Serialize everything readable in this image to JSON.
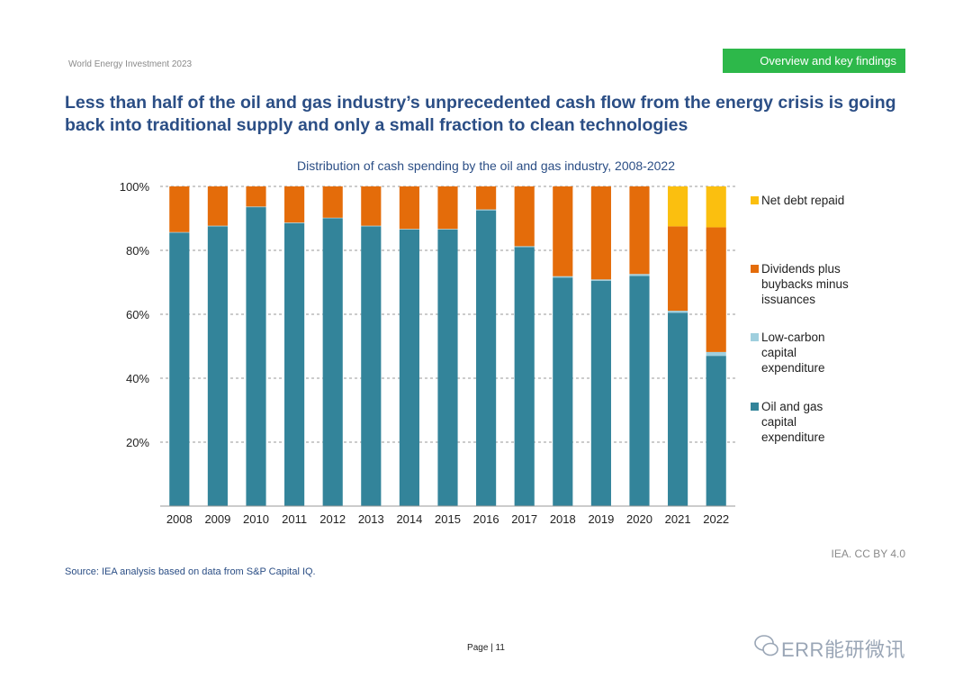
{
  "header": {
    "report_name": "World Energy Investment 2023",
    "section_badge": "Overview and key findings"
  },
  "title": "Less than half of the oil and gas industry’s unprecedented cash flow from the energy crisis is going back into traditional supply and only a small fraction to clean technologies",
  "chart_data": {
    "type": "bar",
    "stacked": true,
    "title": "Distribution of cash spending by the oil and gas industry, 2008-2022",
    "xlabel": "",
    "ylabel": "",
    "ylim": [
      0,
      100
    ],
    "yticks": [
      20,
      40,
      60,
      80,
      100
    ],
    "ytick_labels": [
      "20%",
      "40%",
      "60%",
      "80%",
      "100%"
    ],
    "grid": "horizontal-dashed",
    "legend_position": "right",
    "categories": [
      "2008",
      "2009",
      "2010",
      "2011",
      "2012",
      "2013",
      "2014",
      "2015",
      "2016",
      "2017",
      "2018",
      "2019",
      "2020",
      "2021",
      "2022"
    ],
    "series": [
      {
        "name": "Oil and gas capital expenditure",
        "color": "#33849a",
        "values": [
          85.5,
          87.5,
          93.5,
          88.5,
          90,
          87.5,
          86.5,
          86.5,
          92.5,
          81,
          71.5,
          70.5,
          72,
          60.5,
          47
        ]
      },
      {
        "name": "Low-carbon capital expenditure",
        "color": "#9fcfde",
        "values": [
          0.2,
          0.2,
          0.2,
          0.2,
          0.2,
          0.2,
          0.2,
          0.2,
          0.3,
          0.3,
          0.4,
          0.4,
          0.6,
          0.6,
          1.2
        ]
      },
      {
        "name": "Dividends plus buybacks minus issuances",
        "color": "#e46c0a",
        "values": [
          14.3,
          12.3,
          6.3,
          11.3,
          9.8,
          12.3,
          13.3,
          13.3,
          7.2,
          18.7,
          28.1,
          29.1,
          27.4,
          26.4,
          39
        ]
      },
      {
        "name": "Net debt repaid",
        "color": "#fbbf0f",
        "values": [
          0,
          0,
          0,
          0,
          0,
          0,
          0,
          0,
          0,
          0,
          0,
          0,
          0,
          12.5,
          12.8
        ]
      }
    ],
    "legend_order": [
      "Net debt repaid",
      "Dividends plus buybacks minus issuances",
      "Low-carbon capital expenditure",
      "Oil and gas capital expenditure"
    ]
  },
  "footer": {
    "credit": "IEA. CC BY 4.0",
    "source": "Source: IEA analysis based on data from S&P Capital IQ.",
    "page_label": "Page | 11",
    "watermark": "ERR能研微讯"
  }
}
